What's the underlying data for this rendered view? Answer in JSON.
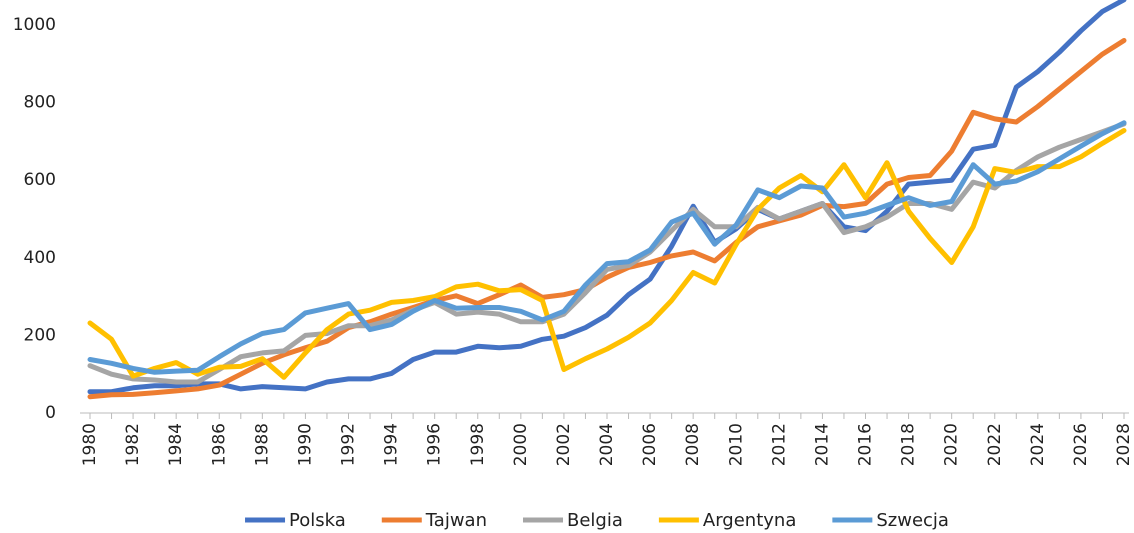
{
  "chart_data": {
    "type": "line",
    "categories": [
      "1980",
      null,
      "1982",
      null,
      "1984",
      null,
      "1986",
      null,
      "1988",
      null,
      "1990",
      null,
      "1992",
      null,
      "1994",
      null,
      "1996",
      null,
      "1998",
      null,
      "2000",
      null,
      "2002",
      null,
      "2004",
      null,
      "2006",
      null,
      "2008",
      null,
      "2010",
      null,
      "2012",
      null,
      "2014",
      null,
      "2016",
      null,
      "2018",
      null,
      "2020",
      null,
      "2022",
      null,
      "2024",
      null,
      "2026",
      null,
      "2028"
    ],
    "series": [
      {
        "name": "Polska",
        "color": "#4472c4",
        "values": [
          55,
          55,
          65,
          70,
          70,
          75,
          75,
          62,
          68,
          65,
          62,
          80,
          88,
          88,
          102,
          138,
          157,
          157,
          172,
          168,
          172,
          190,
          198,
          220,
          252,
          305,
          345,
          430,
          533,
          440,
          475,
          525,
          500,
          520,
          540,
          480,
          470,
          520,
          590,
          595,
          600,
          680,
          690,
          840,
          880,
          930,
          985,
          1035,
          1065
        ]
      },
      {
        "name": "Tajwan",
        "color": "#ed7d31",
        "values": [
          42,
          47,
          48,
          52,
          57,
          62,
          72,
          100,
          128,
          150,
          168,
          185,
          220,
          235,
          255,
          272,
          290,
          302,
          282,
          305,
          330,
          298,
          305,
          318,
          350,
          375,
          388,
          405,
          415,
          392,
          440,
          480,
          495,
          510,
          535,
          532,
          540,
          590,
          607,
          612,
          675,
          775,
          758,
          750,
          790,
          835,
          880,
          925,
          960
        ]
      },
      {
        "name": "Belgia",
        "color": "#a5a5a5",
        "values": [
          122,
          100,
          88,
          85,
          80,
          80,
          112,
          145,
          155,
          160,
          200,
          205,
          225,
          225,
          240,
          265,
          285,
          255,
          260,
          255,
          235,
          235,
          255,
          310,
          370,
          380,
          415,
          470,
          525,
          480,
          480,
          530,
          500,
          520,
          540,
          465,
          480,
          505,
          540,
          540,
          525,
          595,
          580,
          625,
          660,
          685,
          705,
          725,
          745
        ]
      },
      {
        "name": "Argentyna",
        "color": "#ffc000",
        "values": [
          232,
          190,
          95,
          115,
          130,
          100,
          118,
          120,
          140,
          92,
          155,
          215,
          255,
          265,
          285,
          290,
          300,
          325,
          332,
          315,
          318,
          290,
          112,
          140,
          165,
          195,
          232,
          290,
          362,
          335,
          435,
          525,
          580,
          612,
          570,
          640,
          555,
          645,
          520,
          450,
          388,
          480,
          630,
          620,
          635,
          635,
          660,
          695,
          728
        ]
      },
      {
        "name": "Szwecja",
        "color": "#5b9bd5",
        "values": [
          138,
          128,
          115,
          105,
          108,
          110,
          145,
          178,
          205,
          215,
          258,
          270,
          282,
          215,
          228,
          262,
          290,
          270,
          272,
          272,
          262,
          240,
          262,
          330,
          385,
          390,
          420,
          492,
          515,
          435,
          485,
          575,
          555,
          585,
          580,
          505,
          515,
          535,
          555,
          535,
          545,
          640,
          590,
          598,
          622,
          655,
          688,
          720,
          748
        ]
      }
    ],
    "ylim": [
      0,
      1070
    ],
    "yticks": [
      0,
      200,
      400,
      600,
      800,
      1000
    ],
    "grid": false,
    "legend": "bottom"
  }
}
